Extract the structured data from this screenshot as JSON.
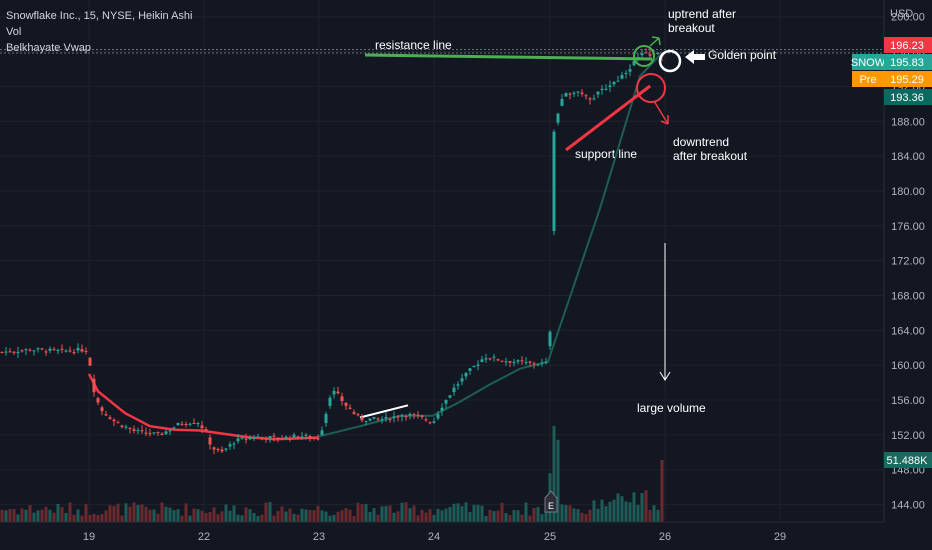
{
  "legend": {
    "symbol_line": "Snowflake Inc., 15, NYSE, Heikin Ashi",
    "vol_label": "Vol",
    "indicator_label": "Belkhayate Vwap"
  },
  "chart_data": {
    "type": "candlestick",
    "symbol": "SNOW",
    "interval": "15",
    "exchange": "NYSE",
    "style": "Heikin Ashi",
    "currency": "USD",
    "ylim": [
      142,
      201
    ],
    "y_ticks": [
      200,
      196,
      192,
      188,
      184,
      180,
      176,
      172,
      168,
      164,
      160,
      156,
      152,
      148,
      144
    ],
    "y_tick_labels": [
      "200.00",
      "196.00",
      "192.00",
      "188.00",
      "184.00",
      "180.00",
      "176.00",
      "172.00",
      "168.00",
      "164.00",
      "160.00",
      "156.00",
      "152.00",
      "148.00",
      "144.00"
    ],
    "x_ticks": [
      19,
      22,
      23,
      24,
      25,
      26,
      29
    ],
    "x_tick_labels": [
      "19",
      "22",
      "23",
      "24",
      "25",
      "26",
      "29"
    ],
    "session_close": [
      {
        "label": "19",
        "price": 161.8
      },
      {
        "label": "22",
        "price": 151.5
      },
      {
        "label": "23",
        "price": 153.8
      },
      {
        "label": "24",
        "price": 160.2
      },
      {
        "label": "25",
        "price": 191.0
      },
      {
        "label": "26",
        "price": 195.8
      }
    ],
    "price_tags": [
      {
        "label": "",
        "value": "196.23",
        "color": "#f23645"
      },
      {
        "label": "SNOW",
        "value": "195.83",
        "color": "#26a69a"
      },
      {
        "label": "Pre",
        "value": "195.29",
        "color": "#ff9800"
      },
      {
        "label": "",
        "value": "193.36",
        "color": "#0b6a5f"
      }
    ],
    "volume_tag": "51.488K",
    "earnings_marker": "E",
    "annotations": {
      "resistance": "resistance line",
      "support": "support line",
      "uptrend_1": "uptrend after",
      "uptrend_2": "breakout",
      "downtrend_1": "downtrend",
      "downtrend_2": "after breakout",
      "golden": "Golden point",
      "large_volume": "large volume"
    },
    "colors": {
      "up": "#26a69a",
      "down": "#ef5350",
      "vwap_down": "#f23645",
      "vwap_up": "#1e5e52",
      "resistance": "#4caf50",
      "support": "#f23645",
      "background": "#131722"
    }
  }
}
